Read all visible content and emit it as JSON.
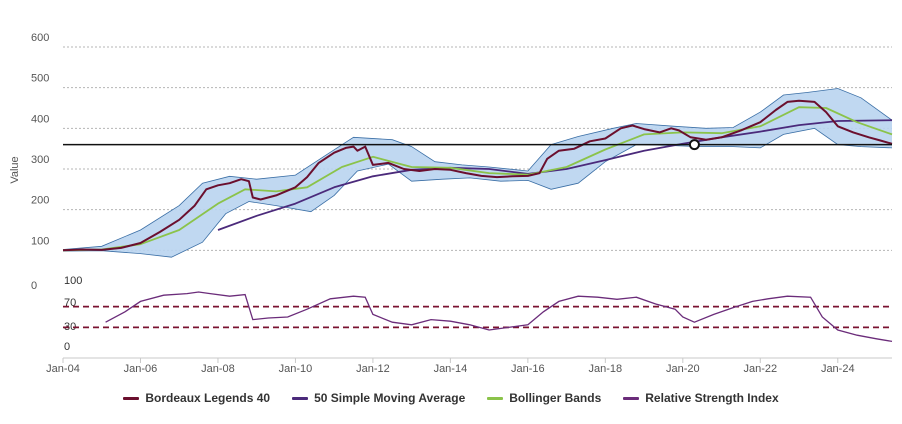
{
  "chart_data": {
    "type": "line",
    "title": "",
    "ylabel": "Value",
    "ylim": [
      0,
      600
    ],
    "yticks": [
      "0",
      "100",
      "200",
      "300",
      "400",
      "500",
      "600"
    ],
    "xticks": [
      "Jan-04",
      "Jan-06",
      "Jan-08",
      "Jan-10",
      "Jan-12",
      "Jan-14",
      "Jan-16",
      "Jan-18",
      "Jan-20",
      "Jan-22",
      "Jan-24"
    ],
    "x_range": [
      2004.0,
      2025.4
    ],
    "grid": true,
    "legend_position": "bottom",
    "reference_line": {
      "value": 360,
      "marker_x": 2020.3
    },
    "series": [
      {
        "name": "Bordeaux Legends 40",
        "color": "#6b0f2e",
        "points": [
          [
            2004.0,
            100
          ],
          [
            2004.5,
            102
          ],
          [
            2005.0,
            101
          ],
          [
            2005.5,
            106
          ],
          [
            2006.0,
            118
          ],
          [
            2006.5,
            145
          ],
          [
            2007.0,
            175
          ],
          [
            2007.4,
            210
          ],
          [
            2007.7,
            250
          ],
          [
            2008.0,
            260
          ],
          [
            2008.3,
            265
          ],
          [
            2008.6,
            275
          ],
          [
            2008.8,
            270
          ],
          [
            2008.9,
            230
          ],
          [
            2009.1,
            225
          ],
          [
            2009.5,
            235
          ],
          [
            2010.0,
            255
          ],
          [
            2010.3,
            280
          ],
          [
            2010.6,
            315
          ],
          [
            2011.0,
            340
          ],
          [
            2011.3,
            352
          ],
          [
            2011.5,
            355
          ],
          [
            2011.6,
            345
          ],
          [
            2011.8,
            355
          ],
          [
            2012.0,
            310
          ],
          [
            2012.4,
            315
          ],
          [
            2012.8,
            300
          ],
          [
            2013.2,
            295
          ],
          [
            2013.6,
            300
          ],
          [
            2014.0,
            298
          ],
          [
            2014.4,
            290
          ],
          [
            2014.8,
            283
          ],
          [
            2015.2,
            280
          ],
          [
            2015.6,
            282
          ],
          [
            2016.0,
            283
          ],
          [
            2016.3,
            290
          ],
          [
            2016.5,
            325
          ],
          [
            2016.8,
            345
          ],
          [
            2017.2,
            350
          ],
          [
            2017.6,
            368
          ],
          [
            2018.0,
            375
          ],
          [
            2018.4,
            400
          ],
          [
            2018.7,
            407
          ],
          [
            2019.0,
            398
          ],
          [
            2019.4,
            390
          ],
          [
            2019.7,
            400
          ],
          [
            2019.9,
            395
          ],
          [
            2020.2,
            378
          ],
          [
            2020.6,
            372
          ],
          [
            2021.0,
            378
          ],
          [
            2021.5,
            395
          ],
          [
            2022.0,
            415
          ],
          [
            2022.4,
            445
          ],
          [
            2022.7,
            465
          ],
          [
            2023.0,
            468
          ],
          [
            2023.4,
            465
          ],
          [
            2023.7,
            440
          ],
          [
            2024.0,
            405
          ],
          [
            2024.4,
            390
          ],
          [
            2024.8,
            378
          ],
          [
            2025.1,
            370
          ],
          [
            2025.4,
            362
          ]
        ]
      },
      {
        "name": "50 Simple Moving Average",
        "color": "#4b2a7b",
        "points": [
          [
            2008.0,
            150
          ],
          [
            2009.0,
            185
          ],
          [
            2010.0,
            215
          ],
          [
            2011.0,
            255
          ],
          [
            2012.0,
            282
          ],
          [
            2013.0,
            298
          ],
          [
            2014.0,
            303
          ],
          [
            2015.0,
            300
          ],
          [
            2016.0,
            288
          ],
          [
            2017.0,
            300
          ],
          [
            2018.0,
            322
          ],
          [
            2019.0,
            345
          ],
          [
            2020.0,
            362
          ],
          [
            2021.0,
            378
          ],
          [
            2022.0,
            392
          ],
          [
            2023.0,
            408
          ],
          [
            2024.0,
            418
          ],
          [
            2025.4,
            420
          ]
        ]
      },
      {
        "name": "Bollinger Bands",
        "color": "#8bc34a",
        "points": [
          [
            2004.0,
            100
          ],
          [
            2005.0,
            102
          ],
          [
            2006.0,
            115
          ],
          [
            2007.0,
            150
          ],
          [
            2008.0,
            215
          ],
          [
            2008.7,
            250
          ],
          [
            2009.5,
            245
          ],
          [
            2010.3,
            255
          ],
          [
            2011.2,
            305
          ],
          [
            2012.0,
            330
          ],
          [
            2013.0,
            305
          ],
          [
            2014.0,
            303
          ],
          [
            2015.0,
            290
          ],
          [
            2016.0,
            286
          ],
          [
            2017.0,
            305
          ],
          [
            2018.0,
            348
          ],
          [
            2019.0,
            385
          ],
          [
            2020.0,
            390
          ],
          [
            2021.0,
            388
          ],
          [
            2022.0,
            405
          ],
          [
            2023.0,
            452
          ],
          [
            2023.7,
            450
          ],
          [
            2024.5,
            415
          ],
          [
            2025.4,
            385
          ]
        ],
        "upper": [
          [
            2004.0,
            102
          ],
          [
            2005.0,
            110
          ],
          [
            2006.0,
            150
          ],
          [
            2007.0,
            210
          ],
          [
            2007.6,
            265
          ],
          [
            2008.3,
            282
          ],
          [
            2009.0,
            275
          ],
          [
            2010.0,
            285
          ],
          [
            2010.8,
            335
          ],
          [
            2011.5,
            378
          ],
          [
            2012.5,
            372
          ],
          [
            2013.0,
            355
          ],
          [
            2013.6,
            318
          ],
          [
            2014.3,
            310
          ],
          [
            2015.0,
            305
          ],
          [
            2016.0,
            295
          ],
          [
            2016.6,
            360
          ],
          [
            2017.3,
            380
          ],
          [
            2018.2,
            400
          ],
          [
            2018.8,
            412
          ],
          [
            2019.8,
            405
          ],
          [
            2020.6,
            400
          ],
          [
            2021.3,
            402
          ],
          [
            2022.0,
            440
          ],
          [
            2022.6,
            482
          ],
          [
            2023.2,
            488
          ],
          [
            2024.0,
            498
          ],
          [
            2024.6,
            475
          ],
          [
            2025.4,
            420
          ]
        ],
        "lower": [
          [
            2004.0,
            98
          ],
          [
            2005.0,
            99
          ],
          [
            2006.0,
            92
          ],
          [
            2006.8,
            83
          ],
          [
            2007.6,
            120
          ],
          [
            2008.2,
            190
          ],
          [
            2008.8,
            220
          ],
          [
            2009.5,
            210
          ],
          [
            2010.4,
            195
          ],
          [
            2011.0,
            235
          ],
          [
            2011.6,
            295
          ],
          [
            2012.4,
            312
          ],
          [
            2013.0,
            270
          ],
          [
            2013.8,
            275
          ],
          [
            2014.5,
            278
          ],
          [
            2015.3,
            270
          ],
          [
            2016.0,
            272
          ],
          [
            2016.6,
            250
          ],
          [
            2017.3,
            265
          ],
          [
            2018.0,
            318
          ],
          [
            2018.8,
            360
          ],
          [
            2019.6,
            358
          ],
          [
            2020.4,
            355
          ],
          [
            2021.3,
            355
          ],
          [
            2022.0,
            352
          ],
          [
            2022.6,
            385
          ],
          [
            2023.4,
            400
          ],
          [
            2024.0,
            360
          ],
          [
            2024.6,
            355
          ],
          [
            2025.4,
            352
          ]
        ]
      },
      {
        "name": "Relative Strength Index",
        "color": "#6b2c7a",
        "points": [
          [
            2005.1,
            40
          ],
          [
            2005.6,
            60
          ],
          [
            2006.0,
            80
          ],
          [
            2006.6,
            92
          ],
          [
            2007.2,
            95
          ],
          [
            2007.5,
            98
          ],
          [
            2007.8,
            95
          ],
          [
            2008.3,
            90
          ],
          [
            2008.7,
            93
          ],
          [
            2008.9,
            45
          ],
          [
            2009.3,
            48
          ],
          [
            2009.8,
            50
          ],
          [
            2010.3,
            65
          ],
          [
            2010.9,
            85
          ],
          [
            2011.5,
            90
          ],
          [
            2011.8,
            88
          ],
          [
            2012.0,
            55
          ],
          [
            2012.5,
            40
          ],
          [
            2013.0,
            35
          ],
          [
            2013.5,
            45
          ],
          [
            2014.0,
            42
          ],
          [
            2014.5,
            35
          ],
          [
            2015.0,
            25
          ],
          [
            2015.5,
            30
          ],
          [
            2016.0,
            35
          ],
          [
            2016.4,
            60
          ],
          [
            2016.8,
            80
          ],
          [
            2017.3,
            90
          ],
          [
            2017.8,
            88
          ],
          [
            2018.3,
            84
          ],
          [
            2018.8,
            88
          ],
          [
            2019.3,
            75
          ],
          [
            2019.8,
            65
          ],
          [
            2020.0,
            50
          ],
          [
            2020.3,
            40
          ],
          [
            2020.8,
            55
          ],
          [
            2021.3,
            68
          ],
          [
            2021.8,
            80
          ],
          [
            2022.2,
            85
          ],
          [
            2022.7,
            90
          ],
          [
            2023.3,
            88
          ],
          [
            2023.6,
            50
          ],
          [
            2024.0,
            25
          ],
          [
            2024.5,
            15
          ],
          [
            2025.0,
            8
          ],
          [
            2025.4,
            3
          ]
        ]
      }
    ],
    "rsi_panel": {
      "labels": [
        "100",
        "70",
        "30",
        "0"
      ],
      "thresholds": [
        70,
        30
      ],
      "threshold_color": "#7a1230"
    }
  }
}
